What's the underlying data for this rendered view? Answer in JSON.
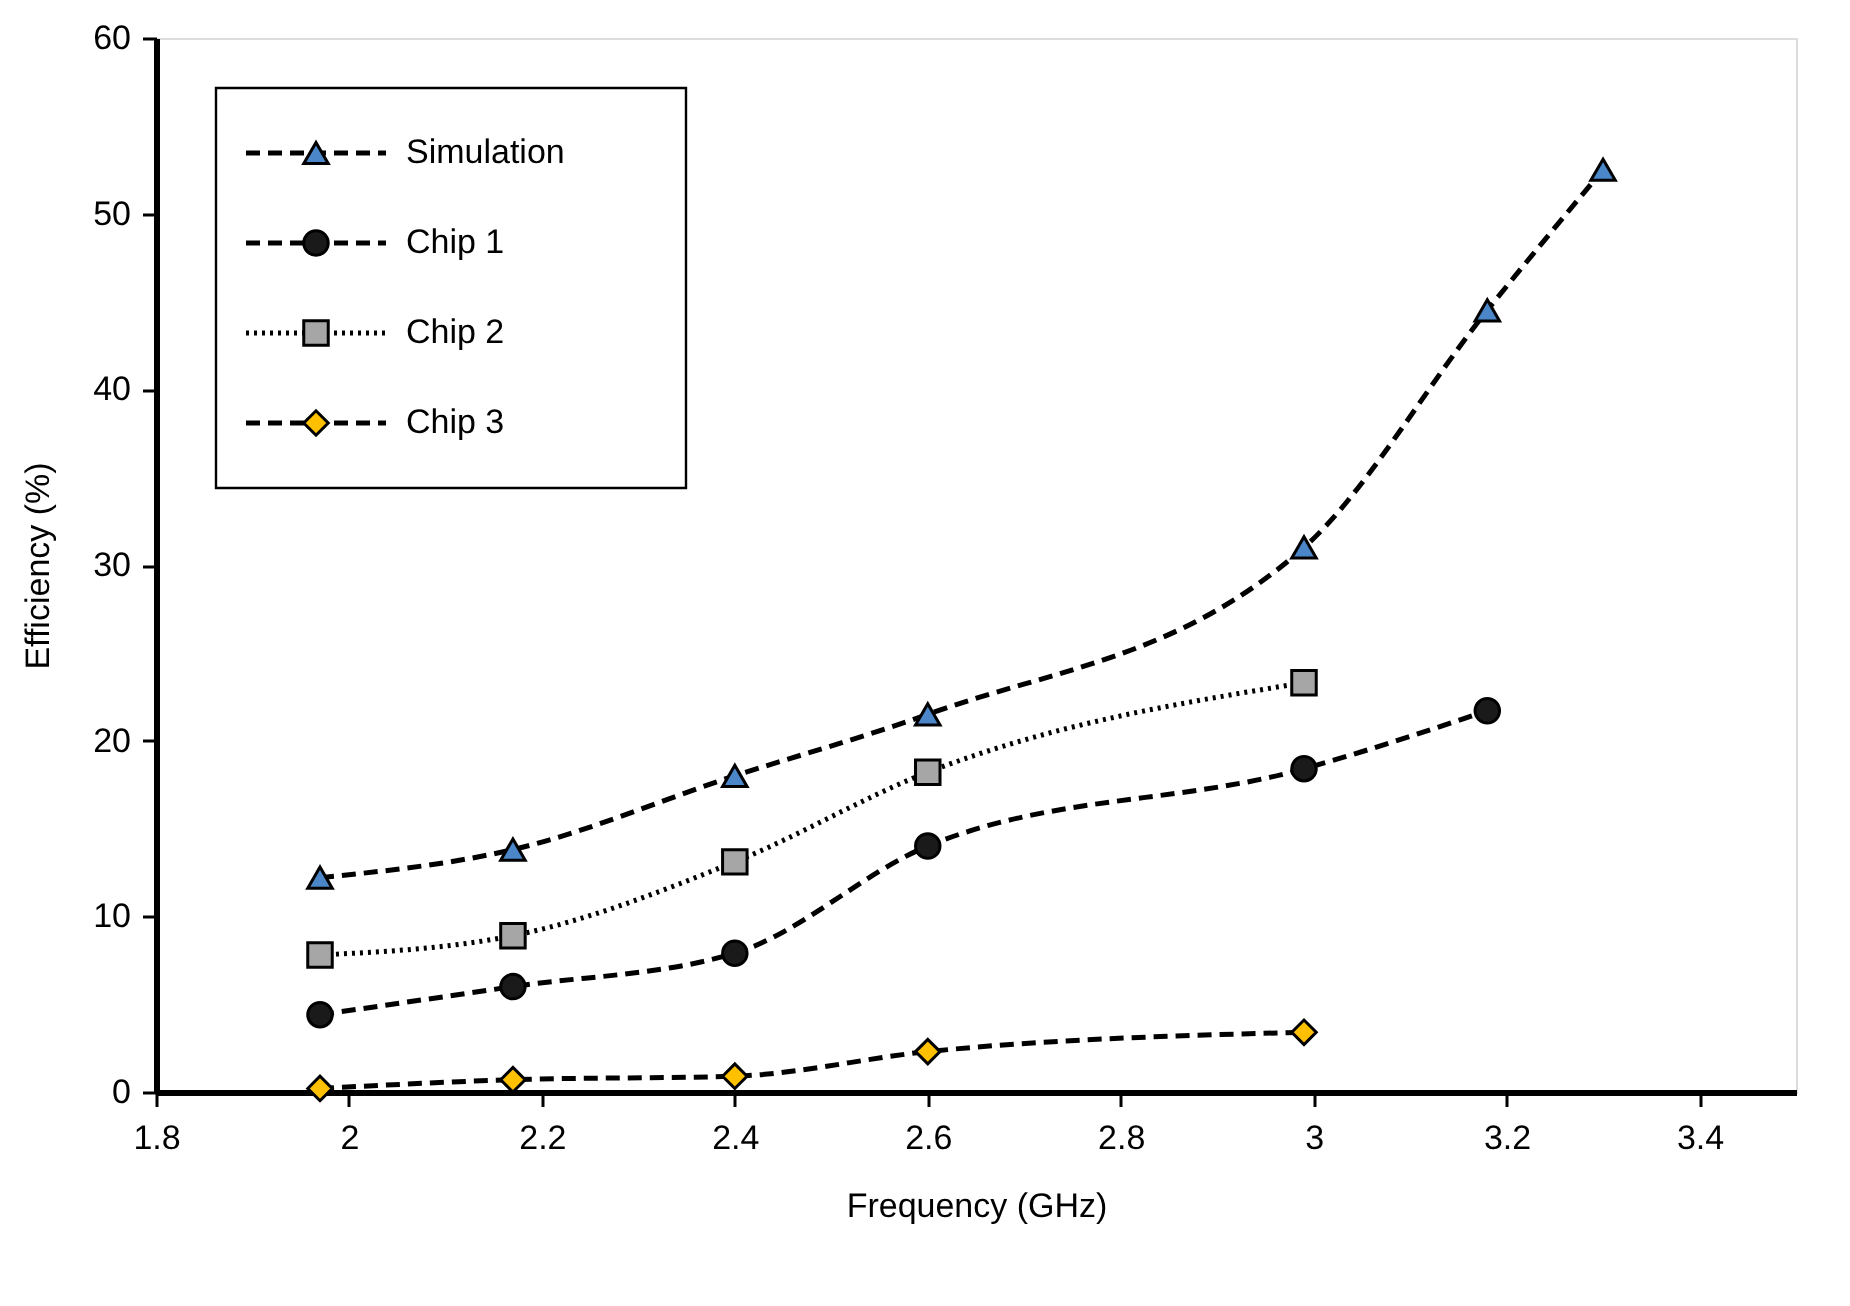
{
  "chart_data": {
    "type": "line",
    "xlabel": "Frequency (GHz)",
    "ylabel": "Efficiency (%)",
    "xlim": [
      1.8,
      3.5
    ],
    "xticks": [
      1.8,
      2,
      2.2,
      2.4,
      2.6,
      2.8,
      3,
      3.2,
      3.4
    ],
    "ylim": [
      0,
      60
    ],
    "yticks": [
      0,
      10,
      20,
      30,
      40,
      50,
      60
    ],
    "grid": false,
    "legend": "top left",
    "series": [
      {
        "name": "Simulation",
        "color": "#4a86c8",
        "marker": "triangle",
        "line_style": "dashed",
        "x": [
          1.97,
          2.17,
          2.4,
          2.6,
          2.99,
          3.18,
          3.3
        ],
        "values": [
          12.2,
          13.8,
          18,
          21.5,
          31,
          44.5,
          52.5
        ]
      },
      {
        "name": "Chip 1",
        "color": "#1a1a1a",
        "marker": "circle",
        "line_style": "dashed",
        "x": [
          1.97,
          2.17,
          2.4,
          2.6,
          2.99,
          3.18
        ],
        "values": [
          4.4,
          6,
          7.9,
          14,
          18.4,
          21.7
        ]
      },
      {
        "name": "Chip 2",
        "color": "#a6a6a6",
        "marker": "square",
        "line_style": "dotted",
        "x": [
          1.97,
          2.17,
          2.4,
          2.6,
          2.99
        ],
        "values": [
          7.8,
          8.9,
          13.1,
          18.2,
          23.3
        ]
      },
      {
        "name": "Chip 3",
        "color": "#ffc000",
        "marker": "diamond",
        "line_style": "dashed",
        "x": [
          1.97,
          2.17,
          2.4,
          2.6,
          2.99
        ],
        "values": [
          0.2,
          0.7,
          0.9,
          2.3,
          3.4
        ]
      }
    ]
  }
}
